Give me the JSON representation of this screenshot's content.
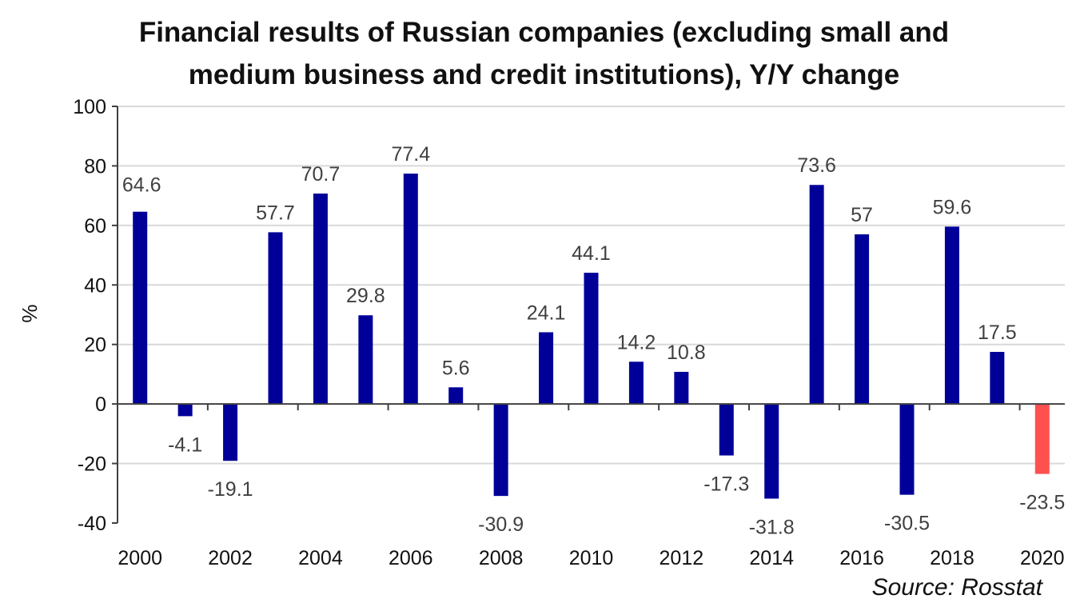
{
  "chart_data": {
    "type": "bar",
    "title": "Financial results of Russian companies (excluding small and\nmedium business and credit institutions), Y/Y change",
    "ylabel": "%",
    "xlabel": "",
    "source": "Source: Rosstat",
    "categories": [
      "2000",
      "2001",
      "2002",
      "2003",
      "2004",
      "2005",
      "2006",
      "2007",
      "2008",
      "2009",
      "2010",
      "2011",
      "2012",
      "2013",
      "2014",
      "2015",
      "2016",
      "2017",
      "2018",
      "2019",
      "2020"
    ],
    "values": [
      64.6,
      -4.1,
      -19.1,
      57.7,
      70.7,
      29.8,
      77.4,
      5.6,
      -30.9,
      24.1,
      44.1,
      14.2,
      10.8,
      -17.3,
      -31.8,
      73.6,
      57,
      -30.5,
      59.6,
      17.5,
      -23.5
    ],
    "value_labels": [
      "64.6",
      "-4.1",
      "-19.1",
      "57.7",
      "70.7",
      "29.8",
      "77.4",
      "5.6",
      "-30.9",
      "24.1",
      "44.1",
      "14.2",
      "10.8",
      "-17.3",
      "-31.8",
      "73.6",
      "57",
      "-30.5",
      "59.6",
      "17.5",
      "-23.5"
    ],
    "x_tick_labels": [
      "2000",
      "",
      "2002",
      "",
      "2004",
      "",
      "2006",
      "",
      "2008",
      "",
      "2010",
      "",
      "2012",
      "",
      "2014",
      "",
      "2016",
      "",
      "2018",
      "",
      "2020"
    ],
    "y_ticks": [
      -40,
      -20,
      0,
      20,
      40,
      60,
      80,
      100
    ],
    "y_tick_labels": [
      "-40",
      "-20",
      "0",
      "20",
      "40",
      "60",
      "80",
      "100"
    ],
    "ylim": [
      -40,
      100
    ],
    "grid": true,
    "legend": "none",
    "colors": {
      "bar": "#000099",
      "highlight": "#ff5050",
      "grid": "#d9d9d9",
      "axis": "#404040",
      "label": "#404040"
    },
    "highlight_category": "2020"
  }
}
